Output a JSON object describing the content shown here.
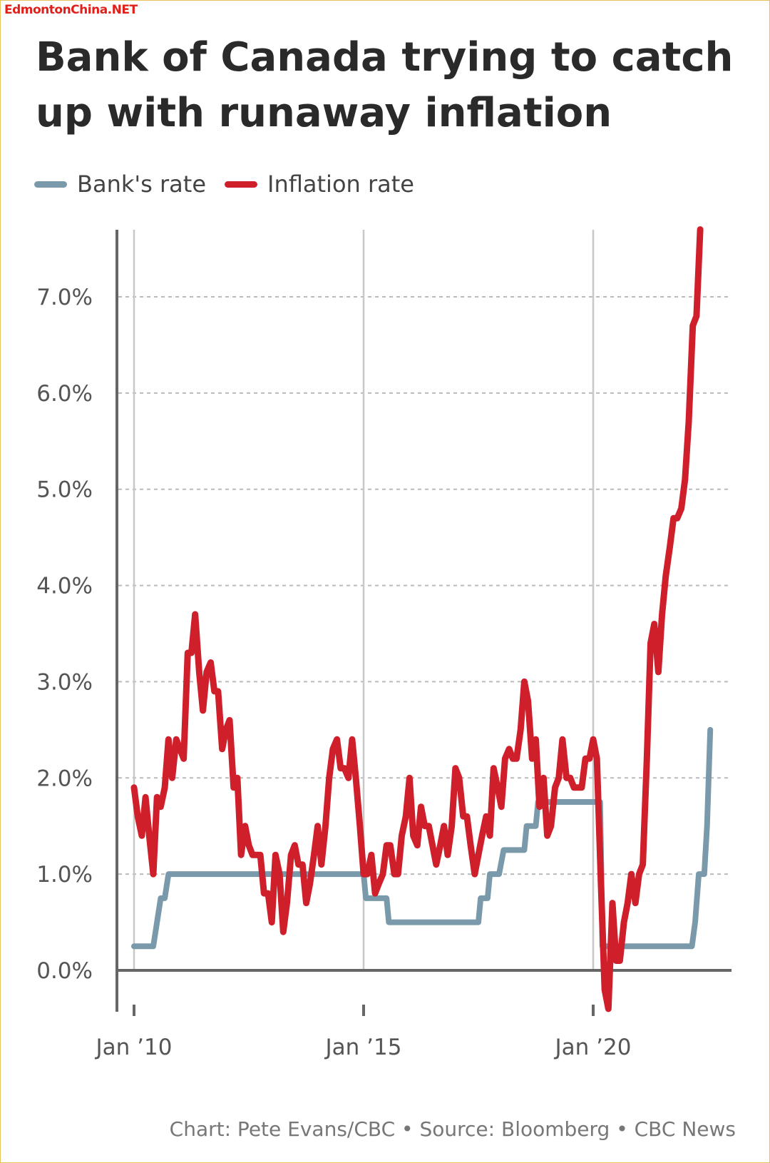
{
  "watermark": "EdmontonChina.NET",
  "title": "Bank of Canada trying to catch up with runaway inflation",
  "credit": "Chart: Pete Evans/CBC • Source: Bloomberg • CBC News",
  "colors": {
    "bank_rate": "#7a9aab",
    "inflation_rate": "#cf1f2b",
    "axis": "#666666",
    "grid": "#bbbbbb"
  },
  "chart_data": {
    "type": "line",
    "title": "Bank of Canada trying to catch up with runaway inflation",
    "xlabel": "",
    "ylabel": "",
    "xlim": [
      2010.0,
      2022.9
    ],
    "ylim": [
      -0.4,
      7.7
    ],
    "y_ticks": [
      {
        "value": 0,
        "label": "0.0%"
      },
      {
        "value": 1,
        "label": "1.0%"
      },
      {
        "value": 2,
        "label": "2.0%"
      },
      {
        "value": 3,
        "label": "3.0%"
      },
      {
        "value": 4,
        "label": "4.0%"
      },
      {
        "value": 5,
        "label": "5.0%"
      },
      {
        "value": 6,
        "label": "6.0%"
      },
      {
        "value": 7,
        "label": "7.0%"
      }
    ],
    "x_ticks": [
      {
        "value": 2010,
        "label": "Jan ’10"
      },
      {
        "value": 2015,
        "label": "Jan ’15"
      },
      {
        "value": 2020,
        "label": "Jan ’20"
      }
    ],
    "grid": true,
    "legend": "top-left",
    "series": [
      {
        "name": "Bank's rate",
        "color": "#7a9aab",
        "points": [
          [
            2010.0,
            0.25
          ],
          [
            2010.42,
            0.25
          ],
          [
            2010.5,
            0.5
          ],
          [
            2010.58,
            0.75
          ],
          [
            2010.67,
            0.75
          ],
          [
            2010.75,
            1.0
          ],
          [
            2015.0,
            1.0
          ],
          [
            2015.05,
            0.75
          ],
          [
            2015.5,
            0.75
          ],
          [
            2015.55,
            0.5
          ],
          [
            2017.5,
            0.5
          ],
          [
            2017.55,
            0.75
          ],
          [
            2017.7,
            0.75
          ],
          [
            2017.75,
            1.0
          ],
          [
            2017.95,
            1.0
          ],
          [
            2018.05,
            1.25
          ],
          [
            2018.5,
            1.25
          ],
          [
            2018.55,
            1.5
          ],
          [
            2018.75,
            1.5
          ],
          [
            2018.8,
            1.75
          ],
          [
            2020.15,
            1.75
          ],
          [
            2020.17,
            1.25
          ],
          [
            2020.2,
            0.25
          ],
          [
            2022.15,
            0.25
          ],
          [
            2022.22,
            0.5
          ],
          [
            2022.3,
            1.0
          ],
          [
            2022.42,
            1.0
          ],
          [
            2022.48,
            1.5
          ],
          [
            2022.55,
            2.5
          ]
        ]
      },
      {
        "name": "Inflation rate",
        "color": "#cf1f2b",
        "points": [
          [
            2010.0,
            1.9
          ],
          [
            2010.08,
            1.6
          ],
          [
            2010.17,
            1.4
          ],
          [
            2010.25,
            1.8
          ],
          [
            2010.33,
            1.4
          ],
          [
            2010.42,
            1.0
          ],
          [
            2010.5,
            1.8
          ],
          [
            2010.58,
            1.7
          ],
          [
            2010.67,
            1.9
          ],
          [
            2010.75,
            2.4
          ],
          [
            2010.83,
            2.0
          ],
          [
            2010.92,
            2.4
          ],
          [
            2011.0,
            2.3
          ],
          [
            2011.08,
            2.2
          ],
          [
            2011.17,
            3.3
          ],
          [
            2011.25,
            3.3
          ],
          [
            2011.33,
            3.7
          ],
          [
            2011.42,
            3.1
          ],
          [
            2011.5,
            2.7
          ],
          [
            2011.58,
            3.1
          ],
          [
            2011.67,
            3.2
          ],
          [
            2011.75,
            2.9
          ],
          [
            2011.83,
            2.9
          ],
          [
            2011.92,
            2.3
          ],
          [
            2012.0,
            2.5
          ],
          [
            2012.08,
            2.6
          ],
          [
            2012.17,
            1.9
          ],
          [
            2012.25,
            2.0
          ],
          [
            2012.33,
            1.2
          ],
          [
            2012.42,
            1.5
          ],
          [
            2012.5,
            1.3
          ],
          [
            2012.58,
            1.2
          ],
          [
            2012.67,
            1.2
          ],
          [
            2012.75,
            1.2
          ],
          [
            2012.83,
            0.8
          ],
          [
            2012.92,
            0.8
          ],
          [
            2013.0,
            0.5
          ],
          [
            2013.08,
            1.2
          ],
          [
            2013.17,
            1.0
          ],
          [
            2013.25,
            0.4
          ],
          [
            2013.33,
            0.7
          ],
          [
            2013.42,
            1.2
          ],
          [
            2013.5,
            1.3
          ],
          [
            2013.58,
            1.1
          ],
          [
            2013.67,
            1.1
          ],
          [
            2013.75,
            0.7
          ],
          [
            2013.83,
            0.9
          ],
          [
            2013.92,
            1.2
          ],
          [
            2014.0,
            1.5
          ],
          [
            2014.08,
            1.1
          ],
          [
            2014.17,
            1.5
          ],
          [
            2014.25,
            2.0
          ],
          [
            2014.33,
            2.3
          ],
          [
            2014.42,
            2.4
          ],
          [
            2014.5,
            2.1
          ],
          [
            2014.58,
            2.1
          ],
          [
            2014.67,
            2.0
          ],
          [
            2014.75,
            2.4
          ],
          [
            2014.83,
            2.0
          ],
          [
            2014.92,
            1.5
          ],
          [
            2015.0,
            1.0
          ],
          [
            2015.08,
            1.0
          ],
          [
            2015.17,
            1.2
          ],
          [
            2015.25,
            0.8
          ],
          [
            2015.33,
            0.9
          ],
          [
            2015.42,
            1.0
          ],
          [
            2015.5,
            1.3
          ],
          [
            2015.58,
            1.3
          ],
          [
            2015.67,
            1.0
          ],
          [
            2015.75,
            1.0
          ],
          [
            2015.83,
            1.4
          ],
          [
            2015.92,
            1.6
          ],
          [
            2016.0,
            2.0
          ],
          [
            2016.08,
            1.4
          ],
          [
            2016.17,
            1.3
          ],
          [
            2016.25,
            1.7
          ],
          [
            2016.33,
            1.5
          ],
          [
            2016.42,
            1.5
          ],
          [
            2016.5,
            1.3
          ],
          [
            2016.58,
            1.1
          ],
          [
            2016.67,
            1.3
          ],
          [
            2016.75,
            1.5
          ],
          [
            2016.83,
            1.2
          ],
          [
            2016.92,
            1.5
          ],
          [
            2017.0,
            2.1
          ],
          [
            2017.08,
            2.0
          ],
          [
            2017.17,
            1.6
          ],
          [
            2017.25,
            1.6
          ],
          [
            2017.33,
            1.3
          ],
          [
            2017.42,
            1.0
          ],
          [
            2017.5,
            1.2
          ],
          [
            2017.58,
            1.4
          ],
          [
            2017.67,
            1.6
          ],
          [
            2017.75,
            1.4
          ],
          [
            2017.83,
            2.1
          ],
          [
            2017.92,
            1.9
          ],
          [
            2018.0,
            1.7
          ],
          [
            2018.08,
            2.2
          ],
          [
            2018.17,
            2.3
          ],
          [
            2018.25,
            2.2
          ],
          [
            2018.33,
            2.2
          ],
          [
            2018.42,
            2.5
          ],
          [
            2018.5,
            3.0
          ],
          [
            2018.58,
            2.8
          ],
          [
            2018.67,
            2.2
          ],
          [
            2018.75,
            2.4
          ],
          [
            2018.83,
            1.7
          ],
          [
            2018.92,
            2.0
          ],
          [
            2019.0,
            1.4
          ],
          [
            2019.08,
            1.5
          ],
          [
            2019.17,
            1.9
          ],
          [
            2019.25,
            2.0
          ],
          [
            2019.33,
            2.4
          ],
          [
            2019.42,
            2.0
          ],
          [
            2019.5,
            2.0
          ],
          [
            2019.58,
            1.9
          ],
          [
            2019.67,
            1.9
          ],
          [
            2019.75,
            1.9
          ],
          [
            2019.83,
            2.2
          ],
          [
            2019.92,
            2.2
          ],
          [
            2020.0,
            2.4
          ],
          [
            2020.08,
            2.2
          ],
          [
            2020.17,
            0.9
          ],
          [
            2020.25,
            -0.2
          ],
          [
            2020.33,
            -0.4
          ],
          [
            2020.42,
            0.7
          ],
          [
            2020.5,
            0.1
          ],
          [
            2020.58,
            0.1
          ],
          [
            2020.67,
            0.5
          ],
          [
            2020.75,
            0.7
          ],
          [
            2020.83,
            1.0
          ],
          [
            2020.92,
            0.7
          ],
          [
            2021.0,
            1.0
          ],
          [
            2021.08,
            1.1
          ],
          [
            2021.17,
            2.2
          ],
          [
            2021.25,
            3.4
          ],
          [
            2021.33,
            3.6
          ],
          [
            2021.42,
            3.1
          ],
          [
            2021.5,
            3.7
          ],
          [
            2021.58,
            4.1
          ],
          [
            2021.67,
            4.4
          ],
          [
            2021.75,
            4.7
          ],
          [
            2021.83,
            4.7
          ],
          [
            2021.92,
            4.8
          ],
          [
            2022.0,
            5.1
          ],
          [
            2022.08,
            5.7
          ],
          [
            2022.17,
            6.7
          ],
          [
            2022.25,
            6.8
          ],
          [
            2022.33,
            7.7
          ]
        ]
      }
    ]
  }
}
